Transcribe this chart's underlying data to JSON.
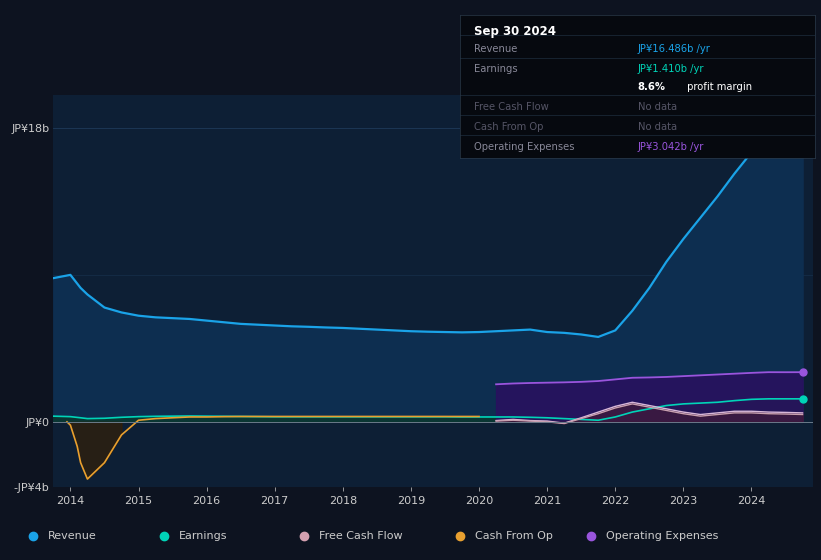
{
  "background_color": "#0d1320",
  "plot_bg_color": "#0d1f35",
  "text_color": "#cccccc",
  "years": [
    2013.75,
    2014.0,
    2014.15,
    2014.25,
    2014.5,
    2014.75,
    2015.0,
    2015.25,
    2015.5,
    2015.75,
    2016.0,
    2016.25,
    2016.5,
    2016.75,
    2017.0,
    2017.25,
    2017.5,
    2017.75,
    2018.0,
    2018.25,
    2018.5,
    2018.75,
    2019.0,
    2019.25,
    2019.5,
    2019.75,
    2020.0,
    2020.25,
    2020.5,
    2020.75,
    2021.0,
    2021.25,
    2021.5,
    2021.75,
    2022.0,
    2022.25,
    2022.5,
    2022.75,
    2023.0,
    2023.25,
    2023.5,
    2023.75,
    2024.0,
    2024.25,
    2024.5,
    2024.75
  ],
  "revenue": [
    8.8,
    9.0,
    8.2,
    7.8,
    7.0,
    6.7,
    6.5,
    6.4,
    6.35,
    6.3,
    6.2,
    6.1,
    6.0,
    5.95,
    5.9,
    5.85,
    5.82,
    5.78,
    5.75,
    5.7,
    5.65,
    5.6,
    5.55,
    5.52,
    5.5,
    5.48,
    5.5,
    5.55,
    5.6,
    5.65,
    5.5,
    5.45,
    5.35,
    5.2,
    5.6,
    6.8,
    8.2,
    9.8,
    11.2,
    12.5,
    13.8,
    15.2,
    16.5,
    17.3,
    16.9,
    16.486
  ],
  "earnings": [
    0.35,
    0.32,
    0.25,
    0.2,
    0.22,
    0.28,
    0.32,
    0.34,
    0.35,
    0.36,
    0.35,
    0.34,
    0.33,
    0.32,
    0.31,
    0.31,
    0.31,
    0.31,
    0.31,
    0.31,
    0.31,
    0.31,
    0.31,
    0.31,
    0.31,
    0.3,
    0.3,
    0.3,
    0.3,
    0.28,
    0.25,
    0.2,
    0.15,
    0.1,
    0.3,
    0.6,
    0.8,
    1.0,
    1.1,
    1.15,
    1.2,
    1.3,
    1.38,
    1.41,
    1.41,
    1.41
  ],
  "cash_from_op_early_x": [
    2013.95,
    2014.0,
    2014.1,
    2014.15,
    2014.25,
    2014.5,
    2014.75,
    2015.0,
    2015.25,
    2015.5,
    2015.75,
    2016.0,
    2016.25,
    2016.5,
    2016.75,
    2017.0,
    2017.25,
    2017.5,
    2017.75,
    2018.0,
    2018.25,
    2018.5,
    2018.75,
    2019.0,
    2019.25,
    2019.5,
    2019.75,
    2020.0
  ],
  "cash_from_op_early": [
    0.0,
    -0.2,
    -1.5,
    -2.5,
    -3.5,
    -2.5,
    -0.8,
    0.1,
    0.2,
    0.25,
    0.3,
    0.3,
    0.32,
    0.33,
    0.33,
    0.33,
    0.33,
    0.33,
    0.33,
    0.33,
    0.33,
    0.33,
    0.33,
    0.33,
    0.33,
    0.33,
    0.33,
    0.33
  ],
  "free_cash_flow_x": [
    2020.25,
    2020.5,
    2020.75,
    2021.0,
    2021.25,
    2021.5,
    2021.75,
    2022.0,
    2022.25,
    2022.5,
    2022.75,
    2023.0,
    2023.25,
    2023.5,
    2023.75,
    2024.0,
    2024.25,
    2024.5,
    2024.75
  ],
  "free_cash_flow": [
    0.05,
    0.1,
    0.05,
    0.0,
    -0.1,
    0.2,
    0.5,
    0.85,
    1.1,
    0.9,
    0.7,
    0.5,
    0.35,
    0.45,
    0.55,
    0.55,
    0.5,
    0.48,
    0.45
  ],
  "cash_from_op_x": [
    2020.25,
    2020.5,
    2020.75,
    2021.0,
    2021.25,
    2021.5,
    2021.75,
    2022.0,
    2022.25,
    2022.5,
    2022.75,
    2023.0,
    2023.25,
    2023.5,
    2023.75,
    2024.0,
    2024.25,
    2024.5,
    2024.75
  ],
  "cash_from_op": [
    0.08,
    0.15,
    0.08,
    0.05,
    -0.08,
    0.25,
    0.6,
    0.95,
    1.2,
    1.0,
    0.8,
    0.6,
    0.45,
    0.55,
    0.65,
    0.65,
    0.6,
    0.58,
    0.55
  ],
  "op_expenses_x": [
    2020.25,
    2020.5,
    2020.75,
    2021.0,
    2021.25,
    2021.5,
    2021.75,
    2022.0,
    2022.25,
    2022.5,
    2022.75,
    2023.0,
    2023.25,
    2023.5,
    2023.75,
    2024.0,
    2024.25,
    2024.5,
    2024.75
  ],
  "op_expenses": [
    2.3,
    2.35,
    2.38,
    2.4,
    2.42,
    2.45,
    2.5,
    2.6,
    2.7,
    2.72,
    2.75,
    2.8,
    2.85,
    2.9,
    2.95,
    3.0,
    3.042,
    3.04,
    3.042
  ],
  "revenue_color": "#1aa3e8",
  "earnings_color": "#00d4b8",
  "free_cash_flow_color": "#c8a0b0",
  "cash_from_op_color": "#e8a030",
  "op_expenses_color": "#9955dd",
  "ylim_min": -4,
  "ylim_max": 20,
  "xticks": [
    2014,
    2015,
    2016,
    2017,
    2018,
    2019,
    2020,
    2021,
    2022,
    2023,
    2024
  ],
  "ytick_positions": [
    -4,
    0,
    18
  ],
  "ytick_labels": [
    "-JP¥4b",
    "JP¥0",
    "JP¥18b"
  ],
  "info_box": {
    "title": "Sep 30 2024",
    "rows": [
      {
        "label": "Revenue",
        "value": "JP¥16.486b /yr",
        "value_color": "#1aa3e8",
        "dim": false
      },
      {
        "label": "Earnings",
        "value": "JP¥1.410b /yr",
        "value_color": "#00d4b8",
        "dim": false
      },
      {
        "label": "",
        "value": "8.6% profit margin",
        "value_color": "#ffffff",
        "dim": false,
        "bold_part": "8.6%",
        "normal_part": " profit margin"
      },
      {
        "label": "Free Cash Flow",
        "value": "No data",
        "value_color": "#555566",
        "dim": true
      },
      {
        "label": "Cash From Op",
        "value": "No data",
        "value_color": "#555566",
        "dim": true
      },
      {
        "label": "Operating Expenses",
        "value": "JP¥3.042b /yr",
        "value_color": "#9955dd",
        "dim": false
      }
    ]
  },
  "legend_entries": [
    {
      "label": "Revenue",
      "color": "#1aa3e8"
    },
    {
      "label": "Earnings",
      "color": "#00d4b8"
    },
    {
      "label": "Free Cash Flow",
      "color": "#d4a0b0"
    },
    {
      "label": "Cash From Op",
      "color": "#e8a030"
    },
    {
      "label": "Operating Expenses",
      "color": "#9955dd"
    }
  ]
}
